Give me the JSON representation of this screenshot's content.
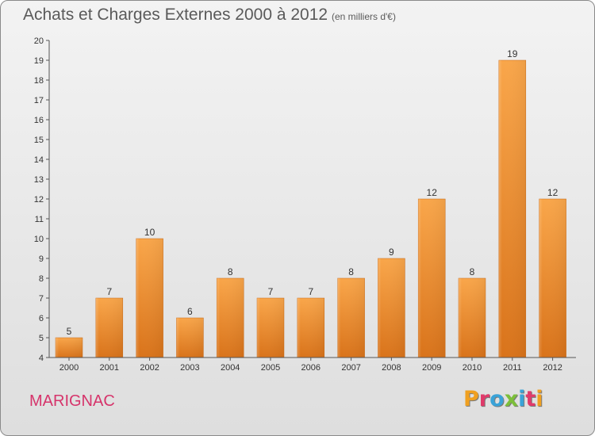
{
  "header": {
    "title": "Achats et Charges Externes 2000 à 2012",
    "subtitle": "(en milliers d'€)"
  },
  "footer": {
    "place": "MARIGNAC",
    "logo_text": "Proxiti",
    "logo_colors": [
      "#f0a020",
      "#e03a6a",
      "#3aa3d8",
      "#7cbf3a",
      "#3aa3d8",
      "#e03a6a",
      "#f0a020"
    ]
  },
  "colors": {
    "bar_light": "#f9a64a",
    "bar_dark": "#d9731a",
    "axis": "#555555",
    "text": "#333333",
    "place": "#d6346b"
  },
  "chart_data": {
    "type": "bar",
    "categories": [
      "2000",
      "2001",
      "2002",
      "2003",
      "2004",
      "2005",
      "2006",
      "2007",
      "2008",
      "2009",
      "2010",
      "2011",
      "2012"
    ],
    "values": [
      5,
      7,
      10,
      6,
      8,
      7,
      7,
      8,
      9,
      12,
      8,
      19,
      12
    ],
    "title": "Achats et Charges Externes 2000 à 2012",
    "subtitle": "(en milliers d'€)",
    "ylim": [
      4,
      20
    ],
    "yticks": [
      4,
      5,
      6,
      7,
      8,
      9,
      10,
      11,
      12,
      13,
      14,
      15,
      16,
      17,
      18,
      19,
      20
    ],
    "grid": false,
    "legend": "none"
  }
}
